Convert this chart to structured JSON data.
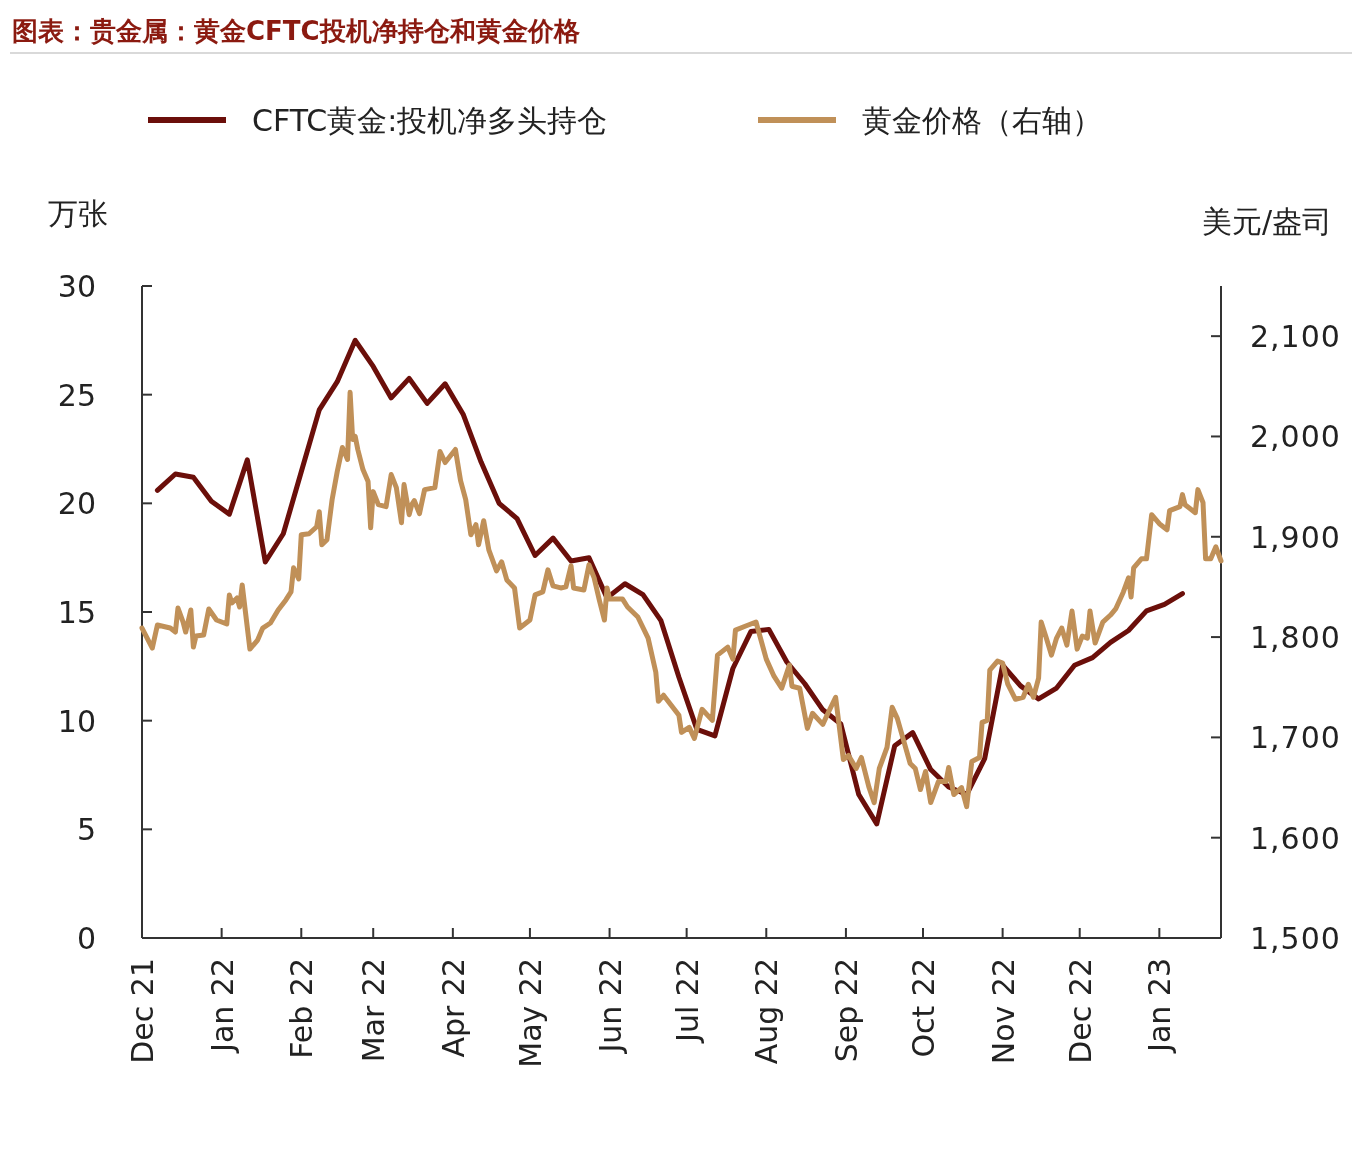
{
  "chart_data": {
    "type": "line",
    "title": "图表：贵金属：黄金CFTC投机净持仓和黄金价格",
    "ylabel": "万张",
    "y2label": "美元/盎司",
    "legend": "top",
    "grid": false,
    "xlim": [
      "2021-12-01",
      "2023-01-25"
    ],
    "xticks": [
      {
        "value": "2021-12-01",
        "label": "Dec 21"
      },
      {
        "value": "2022-01-01",
        "label": "Jan 22"
      },
      {
        "value": "2022-02-01",
        "label": "Feb 22"
      },
      {
        "value": "2022-03-01",
        "label": "Mar 22"
      },
      {
        "value": "2022-04-01",
        "label": "Apr 22"
      },
      {
        "value": "2022-05-01",
        "label": "May 22"
      },
      {
        "value": "2022-06-01",
        "label": "Jun 22"
      },
      {
        "value": "2022-07-01",
        "label": "Jul 22"
      },
      {
        "value": "2022-08-01",
        "label": "Aug 22"
      },
      {
        "value": "2022-09-01",
        "label": "Sep 22"
      },
      {
        "value": "2022-10-01",
        "label": "Oct 22"
      },
      {
        "value": "2022-11-01",
        "label": "Nov 22"
      },
      {
        "value": "2022-12-01",
        "label": "Dec 22"
      },
      {
        "value": "2023-01-01",
        "label": "Jan 23"
      }
    ],
    "ylim": [
      0,
      30
    ],
    "yticks": [
      0,
      5,
      10,
      15,
      20,
      25,
      30
    ],
    "y2lim": [
      1500,
      2150
    ],
    "y2ticks": [
      {
        "value": 1500,
        "label": "1,500"
      },
      {
        "value": 1600,
        "label": "1,600"
      },
      {
        "value": 1700,
        "label": "1,700"
      },
      {
        "value": 1800,
        "label": "1,800"
      },
      {
        "value": 1900,
        "label": "1,900"
      },
      {
        "value": 2000,
        "label": "2,000"
      },
      {
        "value": 2100,
        "label": "2,100"
      }
    ],
    "series": [
      {
        "name": "CFTC黄金:投机净多头持仓",
        "color": "#6b0f0a",
        "x": [
          "2021-12-07",
          "2021-12-14",
          "2021-12-21",
          "2021-12-28",
          "2022-01-04",
          "2022-01-11",
          "2022-01-18",
          "2022-01-25",
          "2022-02-01",
          "2022-02-08",
          "2022-02-15",
          "2022-02-22",
          "2022-03-01",
          "2022-03-08",
          "2022-03-15",
          "2022-03-22",
          "2022-03-29",
          "2022-04-05",
          "2022-04-12",
          "2022-04-19",
          "2022-04-26",
          "2022-05-03",
          "2022-05-10",
          "2022-05-17",
          "2022-05-24",
          "2022-05-31",
          "2022-06-07",
          "2022-06-14",
          "2022-06-21",
          "2022-06-28",
          "2022-07-05",
          "2022-07-12",
          "2022-07-19",
          "2022-07-26",
          "2022-08-02",
          "2022-08-09",
          "2022-08-16",
          "2022-08-23",
          "2022-08-30",
          "2022-09-06",
          "2022-09-13",
          "2022-09-20",
          "2022-09-27",
          "2022-10-04",
          "2022-10-11",
          "2022-10-18",
          "2022-10-25",
          "2022-11-01",
          "2022-11-08",
          "2022-11-15",
          "2022-11-22",
          "2022-11-29",
          "2022-12-06",
          "2022-12-13",
          "2022-12-20",
          "2022-12-27",
          "2023-01-03",
          "2023-01-10"
        ],
        "values": [
          20.6,
          21.35,
          21.2,
          20.1,
          19.5,
          22.0,
          17.3,
          18.6,
          21.45,
          24.3,
          25.6,
          27.5,
          26.3,
          24.85,
          25.75,
          24.6,
          25.5,
          24.1,
          21.9,
          20.0,
          19.3,
          17.6,
          18.4,
          17.35,
          17.5,
          15.65,
          16.3,
          15.8,
          14.6,
          12.0,
          9.6,
          9.3,
          12.4,
          14.1,
          14.2,
          12.7,
          11.7,
          10.5,
          9.85,
          6.6,
          5.25,
          8.85,
          9.45,
          7.75,
          6.95,
          6.6,
          8.25,
          12.55,
          11.6,
          11.0,
          11.5,
          12.55,
          12.9,
          13.6,
          14.15,
          15.05,
          15.35,
          15.85
        ]
      },
      {
        "name": "黄金价格（右轴）",
        "color": "#c09058",
        "axis": "y2",
        "x": [
          "2021-12-01",
          "2021-12-05",
          "2021-12-07",
          "2021-12-12",
          "2021-12-14",
          "2021-12-15",
          "2021-12-17",
          "2021-12-18",
          "2021-12-20",
          "2021-12-21",
          "2021-12-22",
          "2021-12-25",
          "2021-12-27",
          "2021-12-30",
          "2022-01-03",
          "2022-01-04",
          "2022-01-05",
          "2022-01-07",
          "2022-01-08",
          "2022-01-09",
          "2022-01-12",
          "2022-01-15",
          "2022-01-17",
          "2022-01-20",
          "2022-01-23",
          "2022-01-26",
          "2022-01-28",
          "2022-01-29",
          "2022-01-31",
          "2022-02-01",
          "2022-02-04",
          "2022-02-07",
          "2022-02-08",
          "2022-02-09",
          "2022-02-11",
          "2022-02-13",
          "2022-02-15",
          "2022-02-17",
          "2022-02-19",
          "2022-02-20",
          "2022-02-21",
          "2022-02-22",
          "2022-02-23",
          "2022-02-25",
          "2022-02-27",
          "2022-02-28",
          "2022-03-01",
          "2022-03-03",
          "2022-03-06",
          "2022-03-08",
          "2022-03-10",
          "2022-03-12",
          "2022-03-13",
          "2022-03-15",
          "2022-03-16",
          "2022-03-17",
          "2022-03-19",
          "2022-03-21",
          "2022-03-25",
          "2022-03-27",
          "2022-03-29",
          "2022-04-02",
          "2022-04-04",
          "2022-04-06",
          "2022-04-08",
          "2022-04-10",
          "2022-04-11",
          "2022-04-13",
          "2022-04-15",
          "2022-04-18",
          "2022-04-20",
          "2022-04-22",
          "2022-04-25",
          "2022-04-27",
          "2022-05-01",
          "2022-05-03",
          "2022-05-06",
          "2022-05-08",
          "2022-05-10",
          "2022-05-13",
          "2022-05-15",
          "2022-05-17",
          "2022-05-18",
          "2022-05-22",
          "2022-05-24",
          "2022-05-26",
          "2022-05-28",
          "2022-05-30",
          "2022-05-31",
          "2022-06-01",
          "2022-06-06",
          "2022-06-08",
          "2022-06-12",
          "2022-06-16",
          "2022-06-19",
          "2022-06-20",
          "2022-06-22",
          "2022-06-25",
          "2022-06-28",
          "2022-06-29",
          "2022-07-02",
          "2022-07-04",
          "2022-07-07",
          "2022-07-11",
          "2022-07-13",
          "2022-07-17",
          "2022-07-19",
          "2022-07-20",
          "2022-07-24",
          "2022-07-28",
          "2022-08-01",
          "2022-08-04",
          "2022-08-07",
          "2022-08-10",
          "2022-08-11",
          "2022-08-14",
          "2022-08-17",
          "2022-08-19",
          "2022-08-23",
          "2022-08-25",
          "2022-08-28",
          "2022-08-31",
          "2022-09-02",
          "2022-09-05",
          "2022-09-07",
          "2022-09-10",
          "2022-09-12",
          "2022-09-14",
          "2022-09-17",
          "2022-09-19",
          "2022-09-21",
          "2022-09-26",
          "2022-09-28",
          "2022-09-30",
          "2022-10-02",
          "2022-10-04",
          "2022-10-07",
          "2022-10-10",
          "2022-10-11",
          "2022-10-13",
          "2022-10-16",
          "2022-10-18",
          "2022-10-20",
          "2022-10-23",
          "2022-10-24",
          "2022-10-26",
          "2022-10-27",
          "2022-10-30",
          "2022-11-01",
          "2022-11-03",
          "2022-11-06",
          "2022-11-09",
          "2022-11-11",
          "2022-11-13",
          "2022-11-15",
          "2022-11-16",
          "2022-11-18",
          "2022-11-20",
          "2022-11-22",
          "2022-11-24",
          "2022-11-26",
          "2022-11-28",
          "2022-11-30",
          "2022-12-02",
          "2022-12-04",
          "2022-12-05",
          "2022-12-07",
          "2022-12-10",
          "2022-12-13",
          "2022-12-15",
          "2022-12-18",
          "2022-12-20",
          "2022-12-21",
          "2022-12-22",
          "2022-12-25",
          "2022-12-27",
          "2022-12-29",
          "2023-01-01",
          "2023-01-04",
          "2023-01-05",
          "2023-01-07",
          "2023-01-09",
          "2023-01-10",
          "2023-01-11",
          "2023-01-15",
          "2023-01-16",
          "2023-01-18",
          "2023-01-19",
          "2023-01-21",
          "2023-01-23",
          "2023-01-25"
        ],
        "values": [
          1809,
          1789,
          1812,
          1809,
          1805,
          1829,
          1815,
          1805,
          1827,
          1790,
          1801,
          1802,
          1828,
          1817,
          1813,
          1842,
          1834,
          1839,
          1830,
          1852,
          1788,
          1797,
          1809,
          1814,
          1827,
          1837,
          1845,
          1869,
          1858,
          1902,
          1903,
          1910,
          1925,
          1892,
          1897,
          1937,
          1965,
          1989,
          1977,
          2044,
          1997,
          2000,
          1987,
          1967,
          1955,
          1909,
          1945,
          1932,
          1930,
          1962,
          1949,
          1914,
          1952,
          1922,
          1932,
          1936,
          1923,
          1947,
          1949,
          1985,
          1974,
          1987,
          1956,
          1937,
          1902,
          1912,
          1892,
          1916,
          1887,
          1866,
          1875,
          1857,
          1849,
          1809,
          1817,
          1842,
          1845,
          1867,
          1851,
          1849,
          1850,
          1871,
          1849,
          1847,
          1872,
          1859,
          1837,
          1817,
          1849,
          1838,
          1838,
          1830,
          1820,
          1799,
          1765,
          1736,
          1742,
          1732,
          1722,
          1705,
          1710,
          1699,
          1728,
          1717,
          1782,
          1790,
          1778,
          1807,
          1811,
          1815,
          1778,
          1761,
          1749,
          1772,
          1751,
          1749,
          1709,
          1724,
          1713,
          1724,
          1740,
          1678,
          1682,
          1669,
          1680,
          1650,
          1635,
          1669,
          1690,
          1730,
          1719,
          1674,
          1669,
          1648,
          1666,
          1635,
          1656,
          1656,
          1670,
          1643,
          1650,
          1631,
          1676,
          1680,
          1715,
          1717,
          1767,
          1776,
          1774,
          1753,
          1738,
          1740,
          1753,
          1740,
          1759,
          1815,
          1799,
          1782,
          1799,
          1809,
          1792,
          1826,
          1788,
          1801,
          1799,
          1826,
          1794,
          1815,
          1822,
          1828,
          1845,
          1859,
          1840,
          1869,
          1878,
          1878,
          1922,
          1913,
          1907,
          1926,
          1928,
          1930,
          1942,
          1932,
          1924,
          1947,
          1934,
          1878,
          1878,
          1890,
          1876
        ]
      }
    ]
  }
}
